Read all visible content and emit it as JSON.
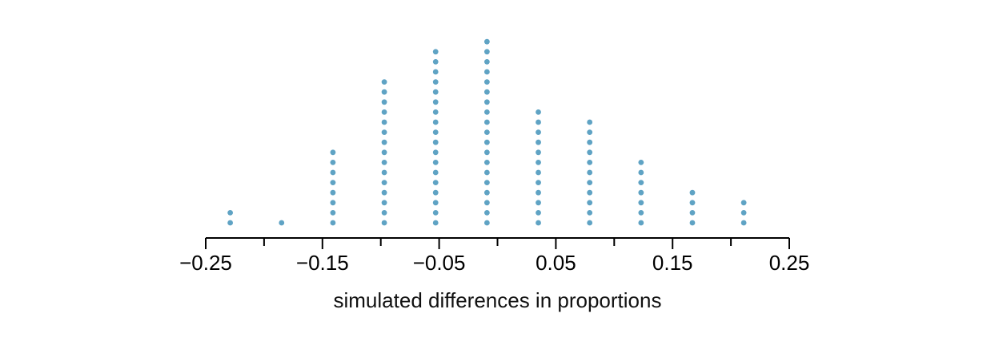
{
  "chart_data": {
    "type": "scatter",
    "subtype": "dot-plot",
    "title": "",
    "xlabel": "simulated differences in proportions",
    "ylabel": "",
    "xlim": [
      -0.25,
      0.25
    ],
    "major_ticks": [
      -0.25,
      -0.15,
      -0.05,
      0.05,
      0.15,
      0.25
    ],
    "major_tick_labels": [
      "−0.25",
      "−0.15",
      "−0.05",
      "0.05",
      "0.15",
      "0.25"
    ],
    "minor_ticks": [
      -0.2,
      -0.1,
      0,
      0.1,
      0.2
    ],
    "grid": false,
    "dot_color": "#5fa3c4",
    "x": [
      -0.229,
      -0.185,
      -0.141,
      -0.097,
      -0.053,
      -0.009,
      0.035,
      0.079,
      0.123,
      0.167,
      0.211
    ],
    "counts": [
      2,
      1,
      8,
      15,
      18,
      19,
      12,
      11,
      7,
      4,
      3
    ]
  }
}
